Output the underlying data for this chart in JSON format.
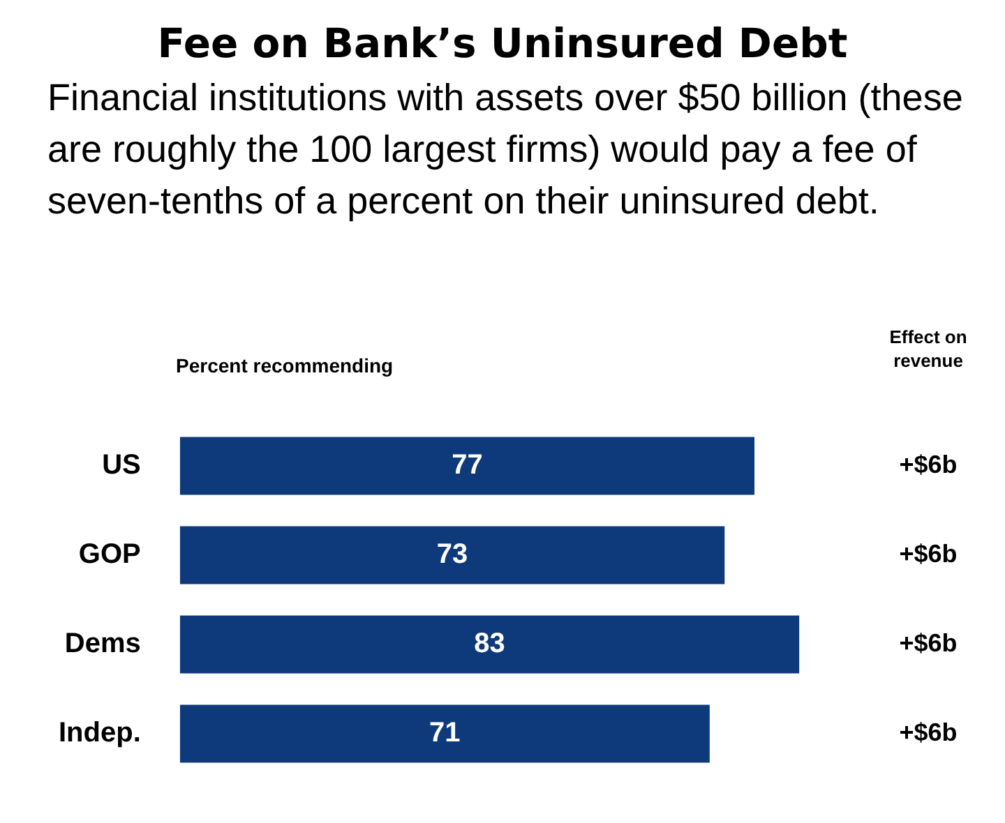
{
  "chart_data": {
    "type": "bar",
    "orientation": "horizontal",
    "title": "Fee on Bank’s Uninsured Debt",
    "subtitle": "Financial institutions with assets over $50 billion (these are roughly the 100 largest firms) would pay a fee of seven-tenths of a percent on their uninsured debt.",
    "xlabel": "Percent recommending",
    "categories": [
      "US",
      "GOP",
      "Dems",
      "Indep."
    ],
    "values": [
      77,
      73,
      83,
      71
    ],
    "color": "#0e3a7c",
    "data_labels": true,
    "legend": false,
    "annotations": [
      "Effect on revenue",
      "+$6b",
      "+$6b",
      "+$6b",
      "+$6b"
    ]
  }
}
